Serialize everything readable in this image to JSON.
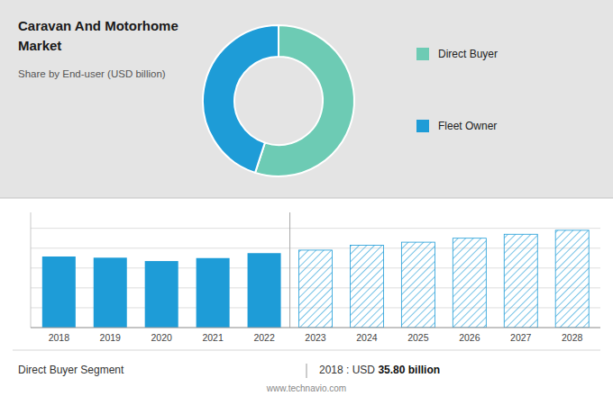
{
  "chart_data": [
    {
      "type": "pie",
      "title": "Caravan And Motorhome\nMarket",
      "subtitle": "Share by End-user (USD billion)",
      "categories": [
        "Direct Buyer",
        "Fleet Owner"
      ],
      "values": [
        55,
        45
      ],
      "colors": [
        "#6dcbb4",
        "#1e9cd7"
      ],
      "legend": "right"
    },
    {
      "type": "bar",
      "categories": [
        "2018",
        "2019",
        "2020",
        "2021",
        "2022",
        "2023",
        "2024",
        "2025",
        "2026",
        "2027",
        "2028"
      ],
      "series": [
        {
          "color": "#1e9cd7",
          "values": [
            35.8,
            35.2,
            33.5,
            35.0,
            37.5,
            null,
            null,
            null,
            null,
            null,
            null
          ]
        },
        {
          "color": "#1e9cd7",
          "line_style": "hatched",
          "values": [
            null,
            null,
            null,
            null,
            null,
            39.0,
            41.5,
            43.0,
            45.0,
            47.0,
            49.0
          ]
        }
      ],
      "ylim": [
        0,
        58
      ],
      "yticks": [
        0,
        10,
        20,
        30,
        40,
        50
      ],
      "grid": true,
      "tick_labels": "x",
      "annotations": [
        "Direct Buyer Segment",
        "2018 : USD ",
        "35.80 billion",
        "www.technavio.com"
      ]
    }
  ]
}
